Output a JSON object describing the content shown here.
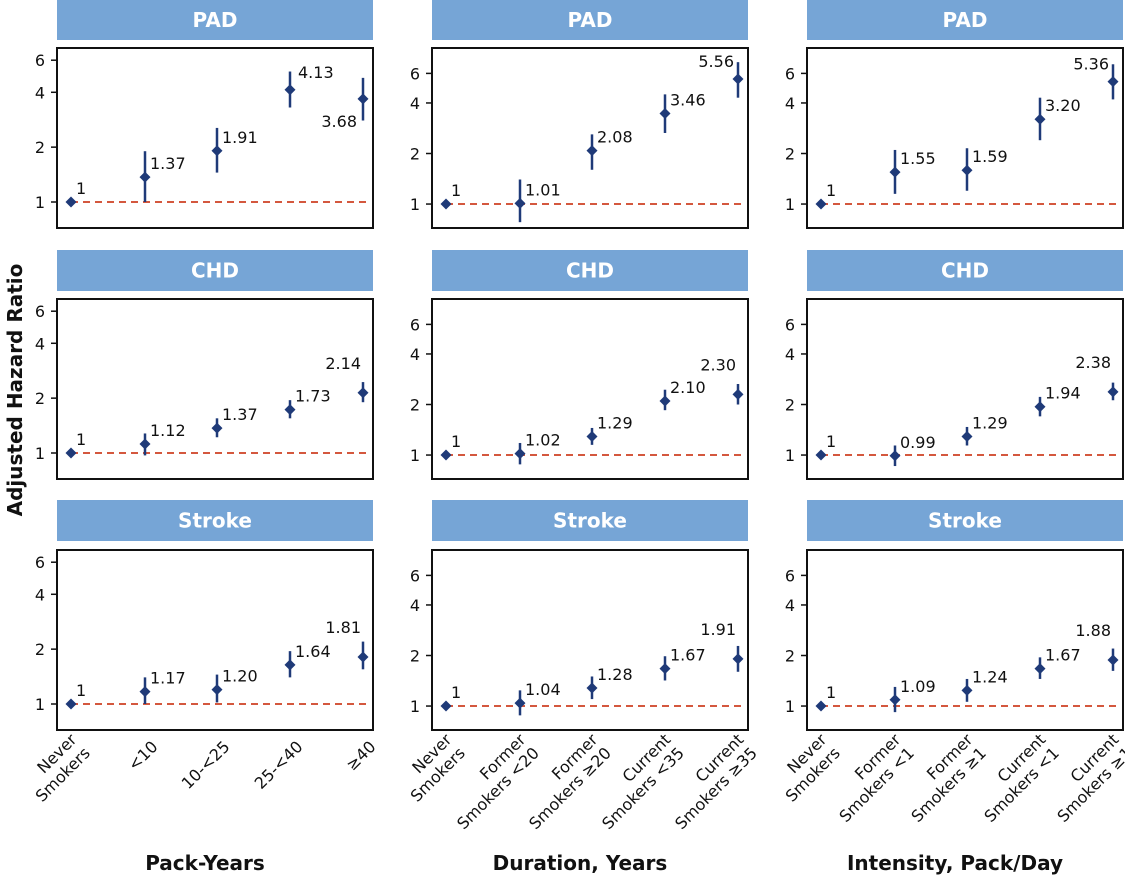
{
  "colors": {
    "header_fill": "#76a5d6",
    "header_text": "#ffffff",
    "marker": "#1f3a78",
    "reference_line": "#d4583e",
    "axis": "#111111",
    "text": "#111111"
  },
  "y_axis_label": "Adjusted Hazard Ratio",
  "row_titles": [
    "PAD",
    "CHD",
    "Stroke"
  ],
  "column_xlabels": [
    "Pack-Years",
    "Duration, Years",
    "Intensity, Pack/Day"
  ],
  "column_categories": [
    [
      [
        "Never",
        "Smokers"
      ],
      [
        "<10"
      ],
      [
        "10-<25"
      ],
      [
        "25-<40"
      ],
      [
        "≥40"
      ]
    ],
    [
      [
        "Never",
        "Smokers"
      ],
      [
        "Former",
        "Smokers <20"
      ],
      [
        "Former",
        "Smokers ≥20"
      ],
      [
        "Current",
        "Smokers <35"
      ],
      [
        "Current",
        "Smokers ≥35"
      ]
    ],
    [
      [
        "Never",
        "Smokers"
      ],
      [
        "Former",
        "Smokers <1"
      ],
      [
        "Former",
        "Smokers ≥1"
      ],
      [
        "Current",
        "Smokers <1"
      ],
      [
        "Current",
        "Smokers ≥1"
      ]
    ]
  ],
  "chart_data": [
    {
      "type": "scatter",
      "title": "PAD",
      "xlabel": "Pack-Years",
      "ylabel": "Adjusted Hazard Ratio",
      "y_scale": "log",
      "yticks": [
        1,
        2,
        4,
        6
      ],
      "ylim": [
        0.72,
        7.0
      ],
      "reference_line": 1,
      "categories": [
        "Never Smokers",
        "<10",
        "10-<25",
        "25-<40",
        "≥40"
      ],
      "values": [
        1,
        1.37,
        1.91,
        4.13,
        3.68
      ],
      "labels": [
        "1",
        "1.37",
        "1.91",
        "4.13",
        "3.68"
      ],
      "ci_lower": [
        1,
        1.0,
        1.45,
        3.3,
        2.8
      ],
      "ci_upper": [
        1,
        1.9,
        2.55,
        5.2,
        4.8
      ]
    },
    {
      "type": "scatter",
      "title": "PAD",
      "xlabel": "Duration, Years",
      "ylabel": "Adjusted Hazard Ratio",
      "y_scale": "log",
      "yticks": [
        1,
        2,
        4,
        6
      ],
      "ylim": [
        0.72,
        8.5
      ],
      "reference_line": 1,
      "categories": [
        "Never Smokers",
        "Former Smokers <20",
        "Former Smokers ≥20",
        "Current Smokers <35",
        "Current Smokers ≥35"
      ],
      "values": [
        1,
        1.01,
        2.08,
        3.46,
        5.56
      ],
      "labels": [
        "1",
        "1.01",
        "2.08",
        "3.46",
        "5.56"
      ],
      "ci_lower": [
        1,
        0.78,
        1.6,
        2.65,
        4.3
      ],
      "ci_upper": [
        1,
        1.4,
        2.6,
        4.5,
        7.0
      ]
    },
    {
      "type": "scatter",
      "title": "PAD",
      "xlabel": "Intensity, Pack/Day",
      "ylabel": "Adjusted Hazard Ratio",
      "y_scale": "log",
      "yticks": [
        1,
        2,
        4,
        6
      ],
      "ylim": [
        0.72,
        8.5
      ],
      "reference_line": 1,
      "categories": [
        "Never Smokers",
        "Former Smokers <1",
        "Former Smokers ≥1",
        "Current Smokers <1",
        "Current Smokers ≥1"
      ],
      "values": [
        1,
        1.55,
        1.59,
        3.2,
        5.36
      ],
      "labels": [
        "1",
        "1.55",
        "1.59",
        "3.20",
        "5.36"
      ],
      "ci_lower": [
        1,
        1.15,
        1.2,
        2.4,
        4.2
      ],
      "ci_upper": [
        1,
        2.1,
        2.15,
        4.3,
        6.8
      ]
    },
    {
      "type": "scatter",
      "title": "CHD",
      "xlabel": "Pack-Years",
      "ylabel": "Adjusted Hazard Ratio",
      "y_scale": "log",
      "yticks": [
        1,
        2,
        4,
        6
      ],
      "ylim": [
        0.72,
        7.0
      ],
      "reference_line": 1,
      "categories": [
        "Never Smokers",
        "<10",
        "10-<25",
        "25-<40",
        "≥40"
      ],
      "values": [
        1,
        1.12,
        1.37,
        1.73,
        2.14
      ],
      "labels": [
        "1",
        "1.12",
        "1.37",
        "1.73",
        "2.14"
      ],
      "ci_lower": [
        1,
        0.97,
        1.22,
        1.55,
        1.9
      ],
      "ci_upper": [
        1,
        1.28,
        1.55,
        1.95,
        2.45
      ]
    },
    {
      "type": "scatter",
      "title": "CHD",
      "xlabel": "Duration, Years",
      "ylabel": "Adjusted Hazard Ratio",
      "y_scale": "log",
      "yticks": [
        1,
        2,
        4,
        6
      ],
      "ylim": [
        0.72,
        8.5
      ],
      "reference_line": 1,
      "categories": [
        "Never Smokers",
        "Former Smokers <20",
        "Former Smokers ≥20",
        "Current Smokers <35",
        "Current Smokers ≥35"
      ],
      "values": [
        1,
        1.02,
        1.29,
        2.1,
        2.3
      ],
      "labels": [
        "1",
        "1.02",
        "1.29",
        "2.10",
        "2.30"
      ],
      "ci_lower": [
        1,
        0.88,
        1.15,
        1.85,
        2.0
      ],
      "ci_upper": [
        1,
        1.18,
        1.45,
        2.45,
        2.65
      ]
    },
    {
      "type": "scatter",
      "title": "CHD",
      "xlabel": "Intensity, Pack/Day",
      "ylabel": "Adjusted Hazard Ratio",
      "y_scale": "log",
      "yticks": [
        1,
        2,
        4,
        6
      ],
      "ylim": [
        0.72,
        8.5
      ],
      "reference_line": 1,
      "categories": [
        "Never Smokers",
        "Former Smokers <1",
        "Former Smokers ≥1",
        "Current Smokers <1",
        "Current Smokers ≥1"
      ],
      "values": [
        1,
        0.99,
        1.29,
        1.94,
        2.38
      ],
      "labels": [
        "1",
        "0.99",
        "1.29",
        "1.94",
        "2.38"
      ],
      "ci_lower": [
        1,
        0.86,
        1.14,
        1.7,
        2.12
      ],
      "ci_upper": [
        1,
        1.14,
        1.47,
        2.22,
        2.7
      ]
    },
    {
      "type": "scatter",
      "title": "Stroke",
      "xlabel": "Pack-Years",
      "ylabel": "Adjusted Hazard Ratio",
      "y_scale": "log",
      "yticks": [
        1,
        2,
        4,
        6
      ],
      "ylim": [
        0.72,
        7.0
      ],
      "reference_line": 1,
      "categories": [
        "Never Smokers",
        "<10",
        "10-<25",
        "25-<40",
        "≥40"
      ],
      "values": [
        1,
        1.17,
        1.2,
        1.64,
        1.81
      ],
      "labels": [
        "1",
        "1.17",
        "1.20",
        "1.64",
        "1.81"
      ],
      "ci_lower": [
        1,
        1.0,
        1.02,
        1.4,
        1.55
      ],
      "ci_upper": [
        1,
        1.4,
        1.45,
        1.95,
        2.2
      ]
    },
    {
      "type": "scatter",
      "title": "Stroke",
      "xlabel": "Duration, Years",
      "ylabel": "Adjusted Hazard Ratio",
      "y_scale": "log",
      "yticks": [
        1,
        2,
        4,
        6
      ],
      "ylim": [
        0.72,
        8.5
      ],
      "reference_line": 1,
      "categories": [
        "Never Smokers",
        "Former Smokers <20",
        "Former Smokers ≥20",
        "Current Smokers <35",
        "Current Smokers ≥35"
      ],
      "values": [
        1,
        1.04,
        1.28,
        1.67,
        1.91
      ],
      "labels": [
        "1",
        "1.04",
        "1.28",
        "1.67",
        "1.91"
      ],
      "ci_lower": [
        1,
        0.88,
        1.1,
        1.42,
        1.6
      ],
      "ci_upper": [
        1,
        1.24,
        1.5,
        1.98,
        2.28
      ]
    },
    {
      "type": "scatter",
      "title": "Stroke",
      "xlabel": "Intensity, Pack/Day",
      "ylabel": "Adjusted Hazard Ratio",
      "y_scale": "log",
      "yticks": [
        1,
        2,
        4,
        6
      ],
      "ylim": [
        0.72,
        8.5
      ],
      "reference_line": 1,
      "categories": [
        "Never Smokers",
        "Former Smokers <1",
        "Former Smokers ≥1",
        "Current Smokers <1",
        "Current Smokers ≥1"
      ],
      "values": [
        1,
        1.09,
        1.24,
        1.67,
        1.88
      ],
      "labels": [
        "1",
        "1.09",
        "1.24",
        "1.67",
        "1.88"
      ],
      "ci_lower": [
        1,
        0.92,
        1.06,
        1.45,
        1.62
      ],
      "ci_upper": [
        1,
        1.3,
        1.45,
        1.95,
        2.2
      ]
    }
  ]
}
